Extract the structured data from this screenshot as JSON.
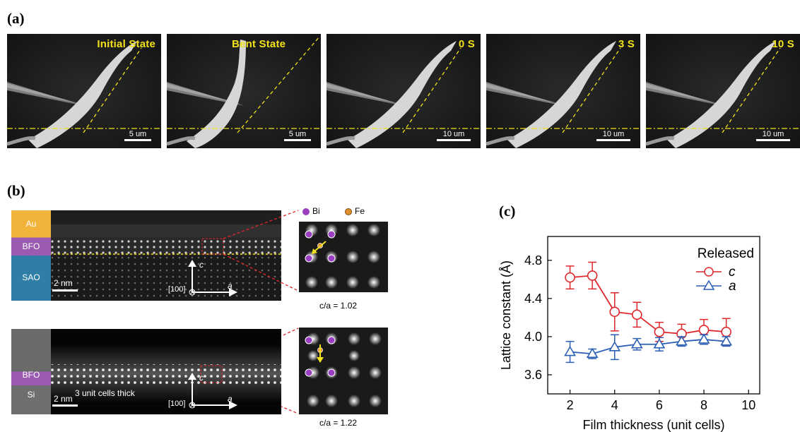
{
  "panels": {
    "a": "(a)",
    "b": "(b)",
    "c": "(c)"
  },
  "sem_frames": [
    {
      "label": "Initial State",
      "scale": "5 um"
    },
    {
      "label": "Bent State",
      "scale": "5 um"
    },
    {
      "label": "0 S",
      "scale": "10 um"
    },
    {
      "label": "3 S",
      "scale": "10 um"
    },
    {
      "label": "10 S",
      "scale": "10 um"
    }
  ],
  "stem_top": {
    "layers": [
      "Au",
      "BFO",
      "SAO"
    ],
    "scale": "2 nm",
    "axis_c": "c",
    "axis_a": "a",
    "direction": "[100]",
    "ratio_label": "c/a = 1.02"
  },
  "stem_bottom": {
    "layers": [
      "BFO",
      "Si"
    ],
    "scale": "2 nm",
    "thickness_note": "3 unit cells thick",
    "axis_c": "c",
    "axis_a": "a",
    "direction": "[100]",
    "ratio_label": "c/a = 1.22"
  },
  "atom_legend": {
    "bi": "Bi",
    "fe": "Fe"
  },
  "colors": {
    "bi": "#9a3fc0",
    "fe": "#e0902a",
    "c_series": "#e0262a",
    "a_series": "#2b5fb5",
    "guide": "#f2e11a"
  },
  "chart_data": {
    "type": "line",
    "xlabel": "Film thickness (unit cells)",
    "ylabel": "Lattice constant (Å)",
    "xlim": [
      1,
      10.5
    ],
    "ylim": [
      3.4,
      5.05
    ],
    "xticks": [
      2,
      4,
      6,
      8,
      10
    ],
    "yticks": [
      3.6,
      4.0,
      4.4,
      4.8
    ],
    "legend_title": "Released",
    "legend_position": "top-right",
    "series": [
      {
        "name": "c",
        "marker": "circle",
        "x": [
          2,
          3,
          4,
          5,
          6,
          7,
          8,
          9
        ],
        "y": [
          4.62,
          4.64,
          4.26,
          4.23,
          4.05,
          4.03,
          4.07,
          4.05
        ],
        "err": [
          0.12,
          0.14,
          0.2,
          0.13,
          0.1,
          0.1,
          0.11,
          0.14
        ]
      },
      {
        "name": "a",
        "marker": "triangle",
        "x": [
          2,
          3,
          4,
          5,
          6,
          7,
          8,
          9
        ],
        "y": [
          3.84,
          3.82,
          3.89,
          3.92,
          3.92,
          3.95,
          3.97,
          3.95
        ],
        "err": [
          0.11,
          0.05,
          0.13,
          0.06,
          0.07,
          0.05,
          0.05,
          0.05
        ]
      }
    ]
  }
}
